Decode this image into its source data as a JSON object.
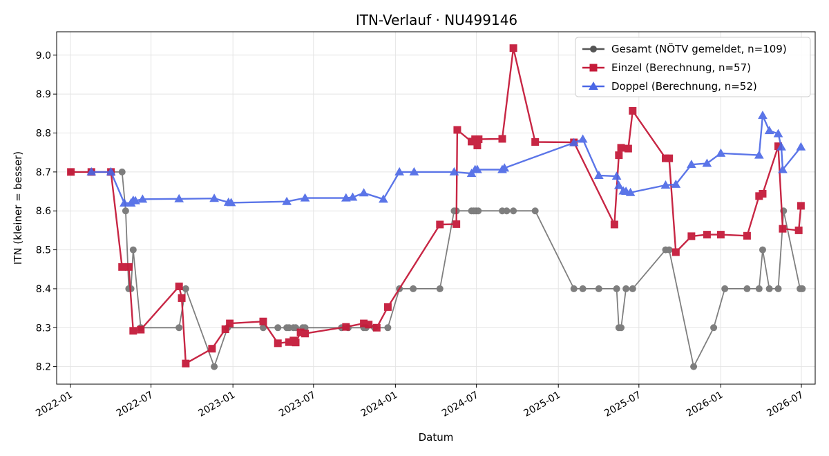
{
  "chart_data": {
    "type": "line",
    "title": "ITN-Verlauf · NU499146",
    "xlabel": "Datum",
    "ylabel": "ITN  (kleiner = besser)",
    "x_type": "date",
    "xlim": [
      "2021-12-01",
      "2026-08-01"
    ],
    "ylim": [
      8.155,
      9.06
    ],
    "y_ticks": [
      8.2,
      8.3,
      8.4,
      8.5,
      8.6,
      8.7,
      8.8,
      8.9,
      9.0
    ],
    "x_ticks": [
      "2022-01",
      "2022-07",
      "2023-01",
      "2023-07",
      "2024-01",
      "2024-07",
      "2025-01",
      "2025-07",
      "2026-01",
      "2026-07"
    ],
    "grid": true,
    "legend_position": "top-right",
    "series": [
      {
        "name": "Gesamt (NÖTV gemeldet, n=109)",
        "color": "#555555",
        "marker": "circle",
        "points": [
          [
            "2022-01-02",
            8.7
          ],
          [
            "2022-02-17",
            8.7
          ],
          [
            "2022-04-02",
            8.7
          ],
          [
            "2022-04-27",
            8.7
          ],
          [
            "2022-05-05",
            8.6
          ],
          [
            "2022-05-12",
            8.4
          ],
          [
            "2022-05-17",
            8.4
          ],
          [
            "2022-05-22",
            8.5
          ],
          [
            "2022-06-08",
            8.3
          ],
          [
            "2022-09-02",
            8.3
          ],
          [
            "2022-09-17",
            8.4
          ],
          [
            "2022-11-20",
            8.2
          ],
          [
            "2022-12-20",
            8.3
          ],
          [
            "2023-03-10",
            8.3
          ],
          [
            "2023-04-12",
            8.3
          ],
          [
            "2023-05-02",
            8.3
          ],
          [
            "2023-05-07",
            8.3
          ],
          [
            "2023-05-17",
            8.3
          ],
          [
            "2023-05-22",
            8.3
          ],
          [
            "2023-06-07",
            8.3
          ],
          [
            "2023-06-12",
            8.3
          ],
          [
            "2023-09-02",
            8.3
          ],
          [
            "2023-09-17",
            8.3
          ],
          [
            "2023-10-22",
            8.3
          ],
          [
            "2023-10-27",
            8.3
          ],
          [
            "2023-11-15",
            8.3
          ],
          [
            "2023-12-15",
            8.3
          ],
          [
            "2024-01-10",
            8.4
          ],
          [
            "2024-02-10",
            8.4
          ],
          [
            "2024-04-10",
            8.4
          ],
          [
            "2024-05-12",
            8.6
          ],
          [
            "2024-05-17",
            8.6
          ],
          [
            "2024-06-20",
            8.6
          ],
          [
            "2024-06-25",
            8.6
          ],
          [
            "2024-06-30",
            8.6
          ],
          [
            "2024-07-05",
            8.6
          ],
          [
            "2024-08-28",
            8.6
          ],
          [
            "2024-09-07",
            8.6
          ],
          [
            "2024-09-22",
            8.6
          ],
          [
            "2024-11-10",
            8.6
          ],
          [
            "2025-02-05",
            8.4
          ],
          [
            "2025-02-25",
            8.4
          ],
          [
            "2025-04-02",
            8.4
          ],
          [
            "2025-05-12",
            8.4
          ],
          [
            "2025-05-17",
            8.3
          ],
          [
            "2025-05-22",
            8.3
          ],
          [
            "2025-06-02",
            8.4
          ],
          [
            "2025-06-17",
            8.4
          ],
          [
            "2025-08-30",
            8.5
          ],
          [
            "2025-09-07",
            8.5
          ],
          [
            "2025-11-01",
            8.2
          ],
          [
            "2025-12-16",
            8.3
          ],
          [
            "2026-01-10",
            8.4
          ],
          [
            "2026-03-01",
            8.4
          ],
          [
            "2026-03-28",
            8.4
          ],
          [
            "2026-04-05",
            8.5
          ],
          [
            "2026-04-20",
            8.4
          ],
          [
            "2026-05-10",
            8.4
          ],
          [
            "2026-05-22",
            8.6
          ],
          [
            "2026-06-28",
            8.4
          ],
          [
            "2026-07-03",
            8.4
          ]
        ]
      },
      {
        "name": "Einzel (Berechnung, n=57)",
        "color": "#c51b3a",
        "marker": "square",
        "points": [
          [
            "2022-01-02",
            8.7
          ],
          [
            "2022-02-17",
            8.7
          ],
          [
            "2022-04-02",
            8.7
          ],
          [
            "2022-04-27",
            8.456
          ],
          [
            "2022-05-12",
            8.456
          ],
          [
            "2022-05-22",
            8.292
          ],
          [
            "2022-06-08",
            8.295
          ],
          [
            "2022-09-02",
            8.406
          ],
          [
            "2022-09-08",
            8.376
          ],
          [
            "2022-09-17",
            8.208
          ],
          [
            "2022-11-15",
            8.246
          ],
          [
            "2022-12-15",
            8.296
          ],
          [
            "2022-12-25",
            8.311
          ],
          [
            "2023-03-10",
            8.316
          ],
          [
            "2023-04-12",
            8.26
          ],
          [
            "2023-05-07",
            8.263
          ],
          [
            "2023-05-17",
            8.267
          ],
          [
            "2023-05-22",
            8.262
          ],
          [
            "2023-06-02",
            8.288
          ],
          [
            "2023-06-12",
            8.285
          ],
          [
            "2023-09-12",
            8.302
          ],
          [
            "2023-10-22",
            8.311
          ],
          [
            "2023-11-02",
            8.308
          ],
          [
            "2023-11-20",
            8.3
          ],
          [
            "2023-12-15",
            8.353
          ],
          [
            "2024-04-10",
            8.565
          ],
          [
            "2024-05-17",
            8.566
          ],
          [
            "2024-05-19",
            8.808
          ],
          [
            "2024-06-20",
            8.778
          ],
          [
            "2024-06-28",
            8.784
          ],
          [
            "2024-07-03",
            8.768
          ],
          [
            "2024-07-06",
            8.784
          ],
          [
            "2024-08-28",
            8.785
          ],
          [
            "2024-09-22",
            9.018
          ],
          [
            "2024-11-10",
            8.777
          ],
          [
            "2025-02-05",
            8.776
          ],
          [
            "2025-05-07",
            8.565
          ],
          [
            "2025-05-17",
            8.743
          ],
          [
            "2025-05-22",
            8.762
          ],
          [
            "2025-06-07",
            8.76
          ],
          [
            "2025-06-17",
            8.857
          ],
          [
            "2025-08-30",
            8.735
          ],
          [
            "2025-09-07",
            8.735
          ],
          [
            "2025-09-22",
            8.494
          ],
          [
            "2025-10-27",
            8.535
          ],
          [
            "2025-12-01",
            8.539
          ],
          [
            "2026-01-01",
            8.539
          ],
          [
            "2026-03-01",
            8.536
          ],
          [
            "2026-03-28",
            8.638
          ],
          [
            "2026-04-05",
            8.644
          ],
          [
            "2026-05-10",
            8.766
          ],
          [
            "2026-05-20",
            8.554
          ],
          [
            "2026-06-25",
            8.55
          ],
          [
            "2026-06-30",
            8.613
          ]
        ]
      },
      {
        "name": "Doppel (Berechnung, n=52)",
        "color": "#4a67e6",
        "marker": "triangle",
        "points": [
          [
            "2022-02-17",
            8.7
          ],
          [
            "2022-04-02",
            8.7
          ],
          [
            "2022-05-02",
            8.62
          ],
          [
            "2022-05-17",
            8.62
          ],
          [
            "2022-05-22",
            8.627
          ],
          [
            "2022-05-27",
            8.626
          ],
          [
            "2022-06-12",
            8.63
          ],
          [
            "2022-09-02",
            8.631
          ],
          [
            "2022-11-20",
            8.632
          ],
          [
            "2022-12-22",
            8.622
          ],
          [
            "2022-12-28",
            8.621
          ],
          [
            "2023-05-02",
            8.624
          ],
          [
            "2023-06-12",
            8.633
          ],
          [
            "2023-09-12",
            8.633
          ],
          [
            "2023-09-27",
            8.635
          ],
          [
            "2023-10-22",
            8.646
          ],
          [
            "2023-12-05",
            8.63
          ],
          [
            "2024-01-10",
            8.7
          ],
          [
            "2024-02-12",
            8.7
          ],
          [
            "2024-05-12",
            8.7
          ],
          [
            "2024-06-20",
            8.696
          ],
          [
            "2024-06-28",
            8.706
          ],
          [
            "2024-07-03",
            8.706
          ],
          [
            "2024-08-28",
            8.706
          ],
          [
            "2024-09-02",
            8.71
          ],
          [
            "2025-02-05",
            8.775
          ],
          [
            "2025-02-25",
            8.784
          ],
          [
            "2025-04-02",
            8.691
          ],
          [
            "2025-05-12",
            8.689
          ],
          [
            "2025-05-17",
            8.665
          ],
          [
            "2025-05-27",
            8.651
          ],
          [
            "2025-06-02",
            8.65
          ],
          [
            "2025-06-12",
            8.647
          ],
          [
            "2025-08-30",
            8.666
          ],
          [
            "2025-09-22",
            8.668
          ],
          [
            "2025-10-27",
            8.719
          ],
          [
            "2025-12-01",
            8.722
          ],
          [
            "2026-01-01",
            8.748
          ],
          [
            "2026-03-28",
            8.743
          ],
          [
            "2026-04-05",
            8.845
          ],
          [
            "2026-04-20",
            8.806
          ],
          [
            "2026-05-10",
            8.798
          ],
          [
            "2026-05-17",
            8.764
          ],
          [
            "2026-05-20",
            8.706
          ],
          [
            "2026-06-30",
            8.764
          ]
        ]
      }
    ]
  }
}
